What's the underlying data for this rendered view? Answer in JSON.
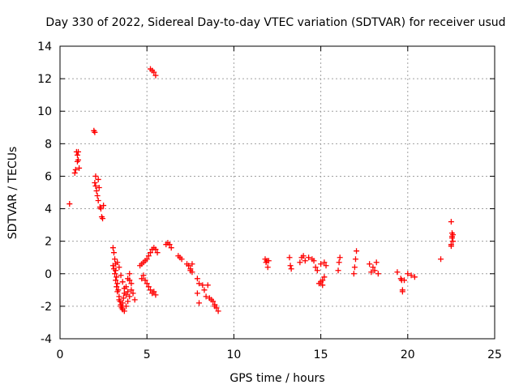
{
  "chart_data": {
    "type": "scatter",
    "title": "Day 330 of 2022, Sidereal Day-to-day VTEC variation (SDTVAR) for receiver usud",
    "xlabel": "GPS time / hours",
    "ylabel": "SDTVAR / TECUs",
    "xlim": [
      0,
      25
    ],
    "ylim": [
      -4,
      14
    ],
    "xticks": [
      "0",
      "5",
      "10",
      "15",
      "20",
      "25"
    ],
    "yticks": [
      "-4",
      "-2",
      "0",
      "2",
      "4",
      "6",
      "8",
      "10",
      "12",
      "14"
    ],
    "grid": true,
    "marker": "plus",
    "series": [
      {
        "name": "SDTVAR",
        "color": "#ff0000",
        "x": [
          0.55,
          0.85,
          0.9,
          0.95,
          1.0,
          1.05,
          1.1,
          1.0,
          1.05,
          1.95,
          2.0,
          2.05,
          2.0,
          2.05,
          2.1,
          2.15,
          2.2,
          2.2,
          2.25,
          2.3,
          2.35,
          2.4,
          2.45,
          2.5,
          3.05,
          3.1,
          3.15,
          3.2,
          3.2,
          3.25,
          3.3,
          3.35,
          3.4,
          3.45,
          3.5,
          3.55,
          3.6,
          3.65,
          3.7,
          3.8,
          3.9,
          4.0,
          4.1,
          4.2,
          4.3,
          3.05,
          3.1,
          3.15,
          3.2,
          3.25,
          3.3,
          3.4,
          3.5,
          3.6,
          3.7,
          3.8,
          3.9,
          4.0,
          4.1,
          3.3,
          3.4,
          3.5,
          3.6,
          3.7,
          3.8,
          3.9,
          4.0,
          4.6,
          4.7,
          4.8,
          4.9,
          5.0,
          5.1,
          5.2,
          5.3,
          5.4,
          5.5,
          5.6,
          4.7,
          4.8,
          4.9,
          5.0,
          5.1,
          5.2,
          5.3,
          5.4,
          5.5,
          5.2,
          5.3,
          5.4,
          5.5,
          6.1,
          6.2,
          6.3,
          6.4,
          6.8,
          6.9,
          7.0,
          7.3,
          7.4,
          7.5,
          7.6,
          7.5,
          7.6,
          7.9,
          8.0,
          7.9,
          8.0,
          8.2,
          8.3,
          8.4,
          8.6,
          8.8,
          8.9,
          9.0,
          9.1,
          8.5,
          8.7,
          8.9,
          11.8,
          11.85,
          11.9,
          11.95,
          12.0,
          13.2,
          13.25,
          13.3,
          13.8,
          13.9,
          14.0,
          14.1,
          14.3,
          14.5,
          14.6,
          14.7,
          14.8,
          14.9,
          15.0,
          15.1,
          15.2,
          15.3,
          15.0,
          15.1,
          15.2,
          16.0,
          16.05,
          16.1,
          16.9,
          16.95,
          17.0,
          17.05,
          17.8,
          17.9,
          18.0,
          18.1,
          18.2,
          18.3,
          19.4,
          19.6,
          19.65,
          19.7,
          19.8,
          19.7,
          20.0,
          20.2,
          20.4,
          21.9,
          22.5,
          22.55,
          22.6,
          22.5,
          22.55,
          22.6,
          22.5,
          22.55
        ],
        "y": [
          4.3,
          6.2,
          6.4,
          7.5,
          7.3,
          7.5,
          6.5,
          6.9,
          7.0,
          8.8,
          8.7,
          6.0,
          5.6,
          5.4,
          5.1,
          4.8,
          4.5,
          5.8,
          5.3,
          4.1,
          4.0,
          3.5,
          3.4,
          4.2,
          1.6,
          1.3,
          0.9,
          0.6,
          0.2,
          -0.2,
          -0.6,
          -1.0,
          -1.4,
          -1.7,
          -2.0,
          -2.1,
          -1.8,
          -1.5,
          -1.2,
          -0.8,
          -0.3,
          0.0,
          -0.6,
          -1.2,
          -1.6,
          0.5,
          0.3,
          0.0,
          -0.4,
          -0.8,
          -1.1,
          -1.6,
          -1.9,
          -2.2,
          -2.3,
          -2.0,
          -1.7,
          -1.4,
          -1.0,
          0.7,
          0.4,
          -0.1,
          -0.5,
          -0.9,
          -1.3,
          -1.1,
          -0.4,
          0.5,
          0.6,
          0.7,
          0.8,
          0.9,
          1.1,
          1.3,
          1.5,
          1.6,
          1.5,
          1.3,
          -0.3,
          -0.1,
          -0.4,
          -0.6,
          -0.8,
          -1.0,
          -1.2,
          -1.1,
          -1.3,
          12.6,
          12.5,
          12.4,
          12.2,
          1.8,
          1.9,
          1.8,
          1.6,
          1.1,
          1.0,
          0.9,
          0.6,
          0.5,
          0.3,
          0.6,
          0.2,
          0.1,
          -0.3,
          -0.6,
          -1.2,
          -1.8,
          -0.7,
          -1.0,
          -1.4,
          -1.5,
          -1.7,
          -1.9,
          -2.1,
          -2.3,
          -0.7,
          -1.6,
          -2.0,
          0.9,
          0.7,
          0.8,
          0.4,
          0.8,
          1.0,
          0.5,
          0.3,
          0.7,
          1.0,
          1.1,
          0.8,
          1.0,
          0.9,
          0.8,
          0.4,
          0.2,
          -0.6,
          -0.5,
          -0.7,
          -0.2,
          0.5,
          0.6,
          -0.4,
          0.7,
          0.2,
          0.7,
          1.0,
          0.0,
          0.4,
          0.9,
          1.4,
          0.6,
          0.1,
          0.4,
          0.2,
          0.7,
          0.0,
          0.1,
          -0.3,
          -0.4,
          -1.1,
          -0.4,
          -1.0,
          0.0,
          -0.1,
          -0.2,
          0.9,
          3.2,
          2.3,
          2.0,
          1.7,
          2.5,
          2.4,
          1.8,
          2.2
        ]
      }
    ]
  }
}
